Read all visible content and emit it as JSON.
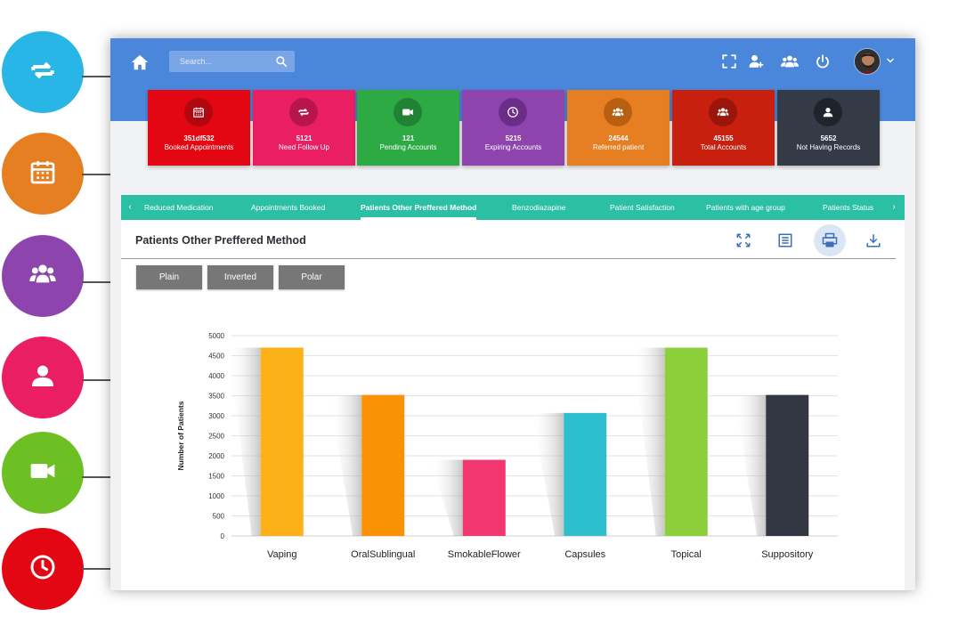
{
  "search": {
    "placeholder": "Search..."
  },
  "cards": [
    {
      "value": "351df532",
      "label": "Booked Appointments",
      "color": "#e30613",
      "icon_color": "#b10810",
      "icon": "calendar-icon"
    },
    {
      "value": "5121",
      "label": "Need Follow Up",
      "color": "#e91e63",
      "icon_color": "#b8154d",
      "icon": "repeat-icon"
    },
    {
      "value": "121",
      "label": "Pending Accounts",
      "color": "#2eaa45",
      "icon_color": "#1f8333",
      "icon": "video-icon"
    },
    {
      "value": "5215",
      "label": "Expiring Accounts",
      "color": "#8e44ad",
      "icon_color": "#6c2d89",
      "icon": "clock-icon"
    },
    {
      "value": "24544",
      "label": "Referred patient",
      "color": "#e67e22",
      "icon_color": "#b95f12",
      "icon": "users-icon"
    },
    {
      "value": "45155",
      "label": "Total Accounts",
      "color": "#c8200f",
      "icon_color": "#9b160a",
      "icon": "users-icon"
    },
    {
      "value": "5652",
      "label": "Not Having Records",
      "color": "#343a46",
      "icon_color": "#1f232b",
      "icon": "user-icon"
    }
  ],
  "tabs": [
    {
      "label": "Reduced Medication"
    },
    {
      "label": "Appointments Booked"
    },
    {
      "label": "Patients Other Preffered Method"
    },
    {
      "label": "Benzodiazapine"
    },
    {
      "label": "Patient Satisfaction"
    },
    {
      "label": "Patients with age group"
    },
    {
      "label": "Patients Status"
    }
  ],
  "panel": {
    "title": "Patients Other Preffered Method",
    "buttons": [
      "Plain",
      "Inverted",
      "Polar"
    ]
  },
  "side_circles": [
    {
      "icon": "repeat-icon",
      "color": "#29b6e6"
    },
    {
      "icon": "calendar-icon",
      "color": "#e67e22"
    },
    {
      "icon": "users-icon",
      "color": "#8e44ad"
    },
    {
      "icon": "user-icon",
      "color": "#e91e63"
    },
    {
      "icon": "video-icon",
      "color": "#6cc024"
    },
    {
      "icon": "clock-icon",
      "color": "#e30613"
    }
  ],
  "chart_data": {
    "type": "bar",
    "categories": [
      "Vaping",
      "OralSublingual",
      "SmokableFlower",
      "Capsules",
      "Topical",
      "Suppository"
    ],
    "values": [
      4700,
      3520,
      1900,
      3070,
      4700,
      3520
    ],
    "colors": [
      "#fbb117",
      "#fb9205",
      "#f2366f",
      "#2ebfcf",
      "#8ccf3b",
      "#333744"
    ],
    "ylabel": "Number of Patients",
    "xlabel": "",
    "ylim": [
      0,
      5000
    ],
    "yticks": [
      0,
      500,
      1000,
      1500,
      2000,
      2500,
      3000,
      3500,
      4000,
      4500,
      5000
    ],
    "grid": true
  }
}
